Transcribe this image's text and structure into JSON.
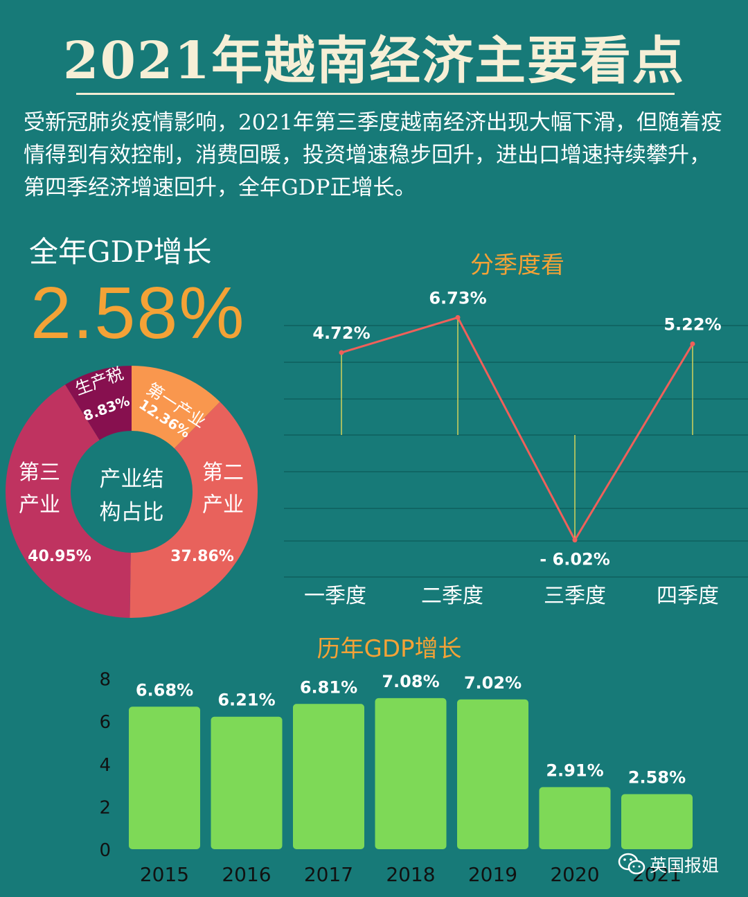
{
  "title": "2021年越南经济主要看点",
  "intro": "受新冠肺炎疫情影响，2021年第三季度越南经济出现大幅下滑，但随着疫情得到有效控制，消费回暖，投资增速稳步回升，进出口增速持续攀升，第四季经济增速回升，全年GDP正增长。",
  "annual": {
    "label": "全年GDP增长",
    "value": "2.58%"
  },
  "watermark": {
    "icon": "wechat-icon",
    "text": "英国报姐"
  },
  "colors": {
    "background": "#177a78",
    "accent": "#f4a236",
    "bar": "#7ed957",
    "line": "#f0605a",
    "stem": "#d4d35a"
  },
  "chart_data": [
    {
      "type": "pie",
      "title": "产业结构占比",
      "center_label": [
        "产业结",
        "构占比"
      ],
      "slices": [
        {
          "name": "第一产业",
          "value": 12.36,
          "value_label": "12.36%",
          "color": "#f9974e"
        },
        {
          "name": "第二产业",
          "value": 37.86,
          "value_label": "37.86%",
          "color": "#e8625c"
        },
        {
          "name": "第三产业",
          "value": 40.95,
          "value_label": "40.95%",
          "color": "#bf3360"
        },
        {
          "name": "生产税",
          "value": 8.83,
          "value_label": "8.83%",
          "color": "#87104f"
        }
      ]
    },
    {
      "type": "line",
      "title": "分季度看",
      "categories": [
        "一季度",
        "二季度",
        "三季度",
        "四季度"
      ],
      "values": [
        4.72,
        6.73,
        -6.02,
        5.22
      ],
      "value_labels": [
        "4.72%",
        "6.73%",
        "- 6.02%",
        "5.22%"
      ],
      "grid": true
    },
    {
      "type": "bar",
      "title": "历年GDP增长",
      "categories": [
        "2015",
        "2016",
        "2017",
        "2018",
        "2019",
        "2020",
        "2021"
      ],
      "values": [
        6.68,
        6.21,
        6.81,
        7.08,
        7.02,
        2.91,
        2.58
      ],
      "value_labels": [
        "6.68%",
        "6.21%",
        "6.81%",
        "7.08%",
        "7.02%",
        "2.91%",
        "2.58%"
      ],
      "yticks": [
        "0",
        "2",
        "4",
        "6",
        "8"
      ],
      "ylim": [
        0,
        8
      ]
    }
  ]
}
